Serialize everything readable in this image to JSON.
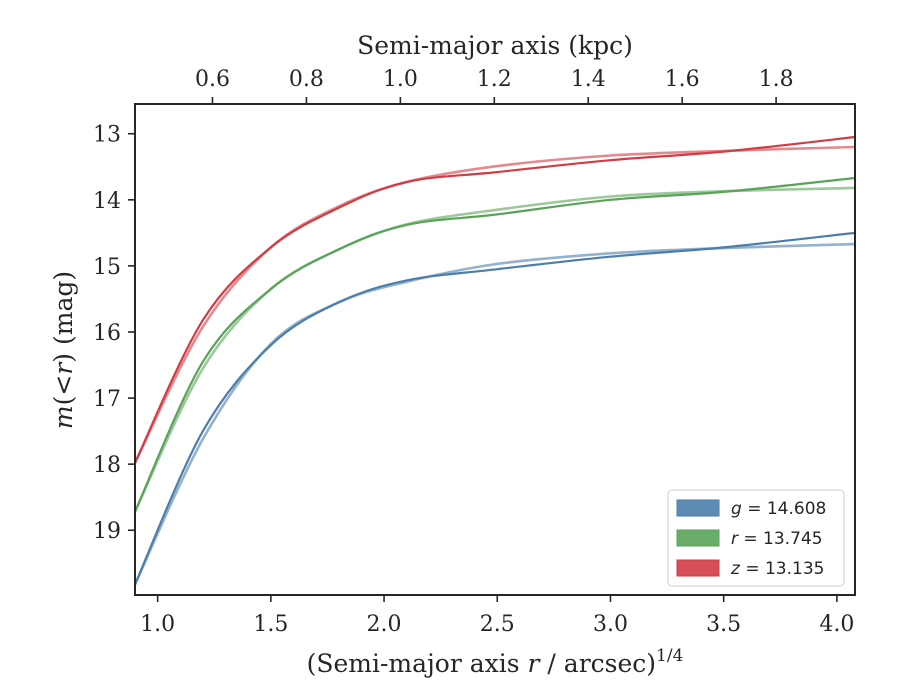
{
  "chart_data": {
    "type": "line",
    "top_axis": {
      "label": "Semi-major axis (kpc)",
      "tick_labels": [
        "0.6",
        "0.8",
        "1.0",
        "1.2",
        "1.4",
        "1.6",
        "1.8"
      ],
      "tick_values": [
        0.6,
        0.8,
        1.0,
        1.2,
        1.4,
        1.6,
        1.8
      ],
      "lim": [
        0.435,
        1.968
      ]
    },
    "xlabel": {
      "text": "(Semi-major axis ",
      "var": "r",
      "text2": " / arcsec)",
      "sup": "1/4"
    },
    "ylabel": {
      "var": "m",
      "paren": "(",
      "op": "<",
      "var2": "r",
      "close": ")",
      "unit": " (mag)"
    },
    "xlim": [
      0.9,
      4.08
    ],
    "ylim": [
      19.98,
      12.55
    ],
    "y_inverted": true,
    "x_tick_labels": [
      "1.0",
      "1.5",
      "2.0",
      "2.5",
      "3.0",
      "3.5",
      "4.0"
    ],
    "x_ticks": [
      1.0,
      1.5,
      2.0,
      2.5,
      3.0,
      3.5,
      4.0
    ],
    "y_tick_labels": [
      "13",
      "14",
      "15",
      "16",
      "17",
      "18",
      "19"
    ],
    "y_ticks": [
      13,
      14,
      15,
      16,
      17,
      18,
      19
    ],
    "grid": false,
    "legend_placement": "lower-right",
    "series": [
      {
        "name": "g",
        "legend_label": {
          "var": "g",
          "rest": " = 14.608"
        },
        "color": "#4c7eab",
        "data": {
          "x": [
            0.9,
            1.2,
            1.5,
            1.8,
            2.1,
            2.5,
            3.0,
            3.5,
            4.08
          ],
          "y": [
            19.82,
            17.5,
            16.2,
            15.55,
            15.22,
            15.05,
            14.86,
            14.72,
            14.5
          ]
        },
        "model": {
          "x": [
            0.9,
            1.2,
            1.5,
            1.8,
            2.1,
            2.5,
            3.0,
            3.5,
            4.08
          ],
          "y": [
            19.82,
            17.62,
            16.18,
            15.55,
            15.24,
            14.97,
            14.81,
            14.73,
            14.67
          ]
        }
      },
      {
        "name": "r",
        "legend_label": {
          "var": "r",
          "rest": " = 13.745"
        },
        "color": "#5aa45a",
        "data": {
          "x": [
            0.9,
            1.2,
            1.5,
            1.8,
            2.1,
            2.5,
            3.0,
            3.5,
            4.08
          ],
          "y": [
            18.72,
            16.45,
            15.35,
            14.75,
            14.38,
            14.22,
            14.0,
            13.88,
            13.67
          ]
        },
        "model": {
          "x": [
            0.9,
            1.2,
            1.5,
            1.8,
            2.1,
            2.5,
            3.0,
            3.5,
            4.08
          ],
          "y": [
            18.72,
            16.55,
            15.35,
            14.75,
            14.37,
            14.15,
            13.95,
            13.87,
            13.82
          ]
        }
      },
      {
        "name": "z",
        "legend_label": {
          "var": "z",
          "rest": " = 13.135"
        },
        "color": "#d13c45",
        "data": {
          "x": [
            0.9,
            1.2,
            1.5,
            1.8,
            2.1,
            2.5,
            3.0,
            3.5,
            4.08
          ],
          "y": [
            17.98,
            15.82,
            14.72,
            14.12,
            13.73,
            13.58,
            13.4,
            13.27,
            13.05
          ]
        },
        "model": {
          "x": [
            0.9,
            1.2,
            1.5,
            1.8,
            2.1,
            2.5,
            3.0,
            3.5,
            4.08
          ],
          "y": [
            17.98,
            15.92,
            14.72,
            14.1,
            13.73,
            13.49,
            13.33,
            13.26,
            13.2
          ]
        }
      }
    ]
  }
}
